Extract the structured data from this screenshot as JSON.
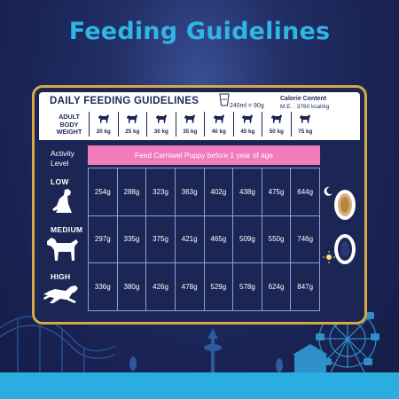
{
  "page_title": "Feeding Guidelines",
  "header": {
    "title": "DAILY FEEDING GUIDELINES",
    "cup": "240ml = 90g",
    "calorie_label": "Calorie Content",
    "calorie_value": "M.E. : 3760 kcal/kg",
    "weight_label_1": "ADULT",
    "weight_label_2": "BODY",
    "weight_label_3": "WEIGHT",
    "weights": [
      "20 kg",
      "25 kg",
      "30 kg",
      "35 kg",
      "40 kg",
      "45 kg",
      "50 kg",
      "75 kg"
    ]
  },
  "activity_label_1": "Activity",
  "activity_label_2": "Level",
  "banner": "Feed Carniwel Puppy before 1 year of age",
  "levels": [
    {
      "name": "LOW",
      "values": [
        "254g",
        "288g",
        "323g",
        "363g",
        "402g",
        "438g",
        "475g",
        "644g"
      ]
    },
    {
      "name": "MEDIUM",
      "values": [
        "297g",
        "335g",
        "375g",
        "421g",
        "465g",
        "509g",
        "550g",
        "746g"
      ]
    },
    {
      "name": "HIGH",
      "values": [
        "336g",
        "380g",
        "426g",
        "478g",
        "529g",
        "578g",
        "624g",
        "847g"
      ]
    }
  ],
  "colors": {
    "background": "#1a2456",
    "title": "#2fb5e6",
    "frame": "#d7a843",
    "banner": "#f07cbd",
    "strip": "#29aedf"
  },
  "icons": [
    "measuring-cup-icon",
    "dog-silhouette-icon",
    "sitting-dog-icon",
    "standing-dog-icon",
    "running-dog-icon",
    "moon-icon",
    "sun-icon",
    "food-bowl-icon"
  ]
}
